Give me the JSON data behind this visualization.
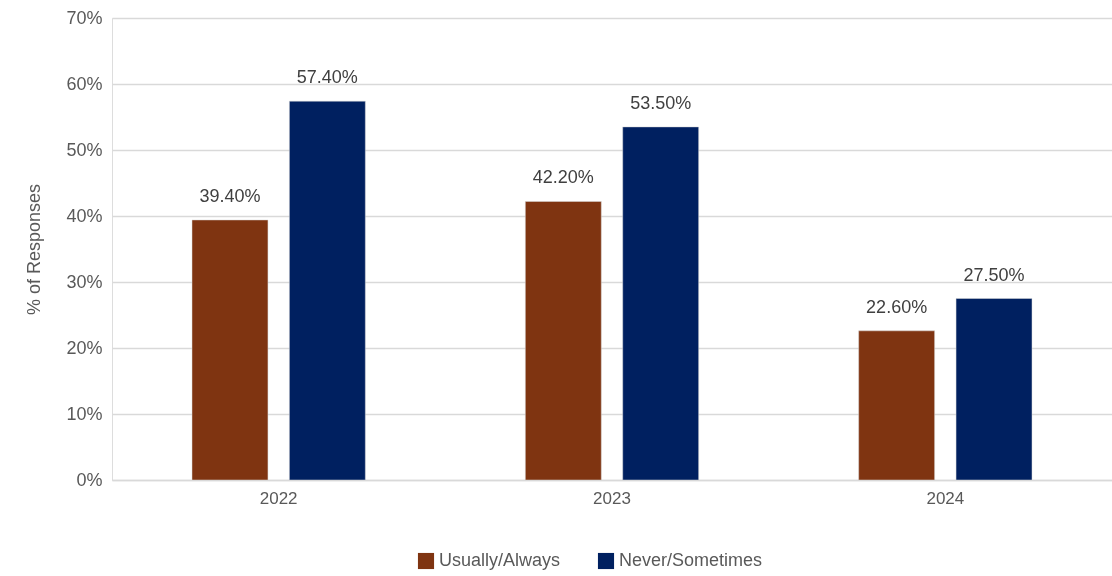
{
  "chart_data": {
    "type": "bar",
    "ylabel": "% of Responses",
    "categories": [
      "2022",
      "2023",
      "2024"
    ],
    "series": [
      {
        "name": "Usually/Always",
        "color": "#7f3411",
        "values": [
          39.4,
          42.2,
          22.6
        ],
        "value_labels": [
          "39.40%",
          "42.20%",
          "22.60%"
        ]
      },
      {
        "name": "Never/Sometimes",
        "color": "#002060",
        "values": [
          57.4,
          53.5,
          27.5
        ],
        "value_labels": [
          "57.40%",
          "53.50%",
          "27.50%"
        ]
      }
    ],
    "ylim": [
      0,
      70
    ],
    "yticks": [
      {
        "value": 0,
        "label": "0%"
      },
      {
        "value": 10,
        "label": "10%"
      },
      {
        "value": 20,
        "label": "20%"
      },
      {
        "value": 30,
        "label": "30%"
      },
      {
        "value": 40,
        "label": "40%"
      },
      {
        "value": 50,
        "label": "50%"
      },
      {
        "value": 60,
        "label": "60%"
      },
      {
        "value": 70,
        "label": "70%"
      }
    ],
    "grid": "y",
    "legend": "bottom"
  }
}
